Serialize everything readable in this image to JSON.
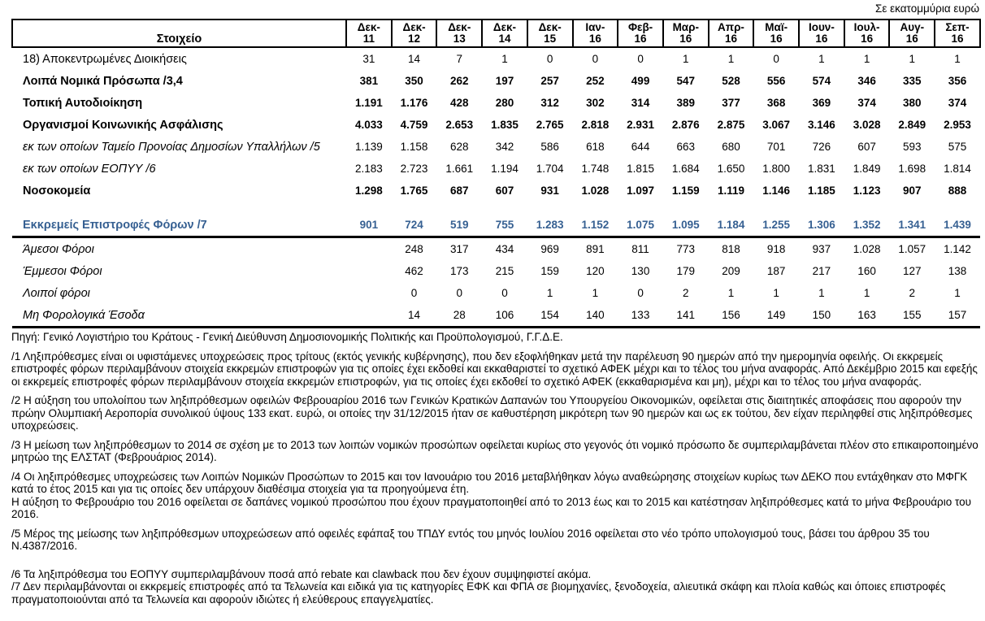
{
  "unit_note": "Σε εκατομμύρια ευρώ",
  "accent_color": "#366092",
  "table": {
    "header": {
      "label": "Στοιχείο",
      "months": [
        {
          "m": "Δεκ-",
          "y": "11"
        },
        {
          "m": "Δεκ-",
          "y": "12"
        },
        {
          "m": "Δεκ-",
          "y": "13"
        },
        {
          "m": "Δεκ-",
          "y": "14"
        },
        {
          "m": "Δεκ-",
          "y": "15"
        },
        {
          "m": "Ιαν-",
          "y": "16"
        },
        {
          "m": "Φεβ-",
          "y": "16"
        },
        {
          "m": "Μαρ-",
          "y": "16"
        },
        {
          "m": "Απρ-",
          "y": "16"
        },
        {
          "m": "Μαϊ-",
          "y": "16"
        },
        {
          "m": "Ιουν-",
          "y": "16"
        },
        {
          "m": "Ιουλ-",
          "y": "16"
        },
        {
          "m": "Αυγ-",
          "y": "16"
        },
        {
          "m": "Σεπ-",
          "y": "16"
        }
      ]
    },
    "rows": [
      {
        "label": "18) Αποκεντρωμένες Διοικήσεις",
        "style": "regular",
        "values": [
          "31",
          "14",
          "7",
          "1",
          "0",
          "0",
          "0",
          "1",
          "1",
          "0",
          "1",
          "1",
          "1",
          "1"
        ]
      },
      {
        "label": "Λοιπά Νομικά Πρόσωπα /3,4",
        "style": "bold",
        "values": [
          "381",
          "350",
          "262",
          "197",
          "257",
          "252",
          "499",
          "547",
          "528",
          "556",
          "574",
          "346",
          "335",
          "356"
        ]
      },
      {
        "label": "Τοπική Αυτοδιοίκηση",
        "style": "bold",
        "values": [
          "1.191",
          "1.176",
          "428",
          "280",
          "312",
          "302",
          "314",
          "389",
          "377",
          "368",
          "369",
          "374",
          "380",
          "374"
        ]
      },
      {
        "label": "Οργανισμοί Κοινωνικής Ασφάλισης",
        "style": "bold",
        "values": [
          "4.033",
          "4.759",
          "2.653",
          "1.835",
          "2.765",
          "2.818",
          "2.931",
          "2.876",
          "2.875",
          "3.067",
          "3.146",
          "3.028",
          "2.849",
          "2.953"
        ]
      },
      {
        "label": "εκ των οποίων Ταμείο Προνοίας Δημοσίων Υπαλλήλων /5",
        "style": "italic",
        "values": [
          "1.139",
          "1.158",
          "628",
          "342",
          "586",
          "618",
          "644",
          "663",
          "680",
          "701",
          "726",
          "607",
          "593",
          "575"
        ]
      },
      {
        "label": "εκ των οποίων ΕΟΠΥΥ /6",
        "style": "italic",
        "values": [
          "2.183",
          "2.723",
          "1.661",
          "1.194",
          "1.704",
          "1.748",
          "1.815",
          "1.684",
          "1.650",
          "1.800",
          "1.831",
          "1.849",
          "1.698",
          "1.814"
        ]
      },
      {
        "label": "Νοσοκομεία",
        "style": "bold",
        "values": [
          "1.298",
          "1.765",
          "687",
          "607",
          "931",
          "1.028",
          "1.097",
          "1.159",
          "1.119",
          "1.146",
          "1.185",
          "1.123",
          "907",
          "888"
        ]
      },
      {
        "label": "Εκκρεμείς Επιστροφές Φόρων /7",
        "style": "blue",
        "values": [
          "901",
          "724",
          "519",
          "755",
          "1.283",
          "1.152",
          "1.075",
          "1.095",
          "1.184",
          "1.255",
          "1.306",
          "1.352",
          "1.341",
          "1.439"
        ]
      },
      {
        "label": "Άμεσοι Φόροι",
        "style": "italic",
        "values": [
          "",
          "248",
          "317",
          "434",
          "969",
          "891",
          "811",
          "773",
          "818",
          "918",
          "937",
          "1.028",
          "1.057",
          "1.142"
        ]
      },
      {
        "label": "Έμμεσοι Φόροι",
        "style": "italic",
        "values": [
          "",
          "462",
          "173",
          "215",
          "159",
          "120",
          "130",
          "179",
          "209",
          "187",
          "217",
          "160",
          "127",
          "138"
        ]
      },
      {
        "label": "Λοιποί φόροι",
        "style": "italic",
        "values": [
          "",
          "0",
          "0",
          "0",
          "1",
          "1",
          "0",
          "2",
          "1",
          "1",
          "1",
          "1",
          "2",
          "1"
        ]
      },
      {
        "label": "Μη Φορολογικά Έσοδα",
        "style": "italic",
        "values": [
          "",
          "14",
          "28",
          "106",
          "154",
          "140",
          "133",
          "141",
          "156",
          "149",
          "150",
          "163",
          "155",
          "157"
        ]
      }
    ]
  },
  "footnotes": [
    {
      "lines": [
        "Πηγή: Γενικό Λογιστήριο του Κράτους - Γενική Διεύθυνση Δημοσιονομικής Πολιτικής και Προϋπολογισμού, Γ.Γ.Δ.Ε."
      ]
    },
    {
      "lines": [
        "/1 Ληξιπρόθεσμες είναι οι υφιστάμενες υποχρεώσεις προς τρίτους (εκτός γενικής κυβέρνησης), που δεν εξοφλήθηκαν μετά την παρέλευση 90 ημερών από την ημερομηνία οφειλής. Οι εκκρεμείς επιστροφές φόρων περιλαμβάνουν στοιχεία εκκρεμών επιστροφών  για τις οποίες έχει εκδοθεί και εκκαθαριστεί το σχετικό ΑΦΕΚ μέχρι και το τέλος του μήνα αναφοράς. Από Δεκέμβριο 2015 και εφεξής οι εκκρεμείς επιστροφές φόρων περιλαμβάνουν στοιχεία εκκρεμών επιστροφών, για τις οποίες έχει εκδοθεί το σχετικό ΑΦΕΚ (εκκαθαρισμένα και μη), μέχρι και το τέλος του μήνα αναφοράς."
      ]
    },
    {
      "lines": [
        "/2 Η αύξηση του υπολοίπου των ληξιπρόθεσμων οφειλών Φεβρουαρίου 2016 των Γενικών Κρατικών Δαπανών του Υπουργείου Οικονομικών, οφείλεται στις διαιτητικές αποφάσεις που αφορούν την πρώην Ολυμπιακή Αεροπορία συνολικού ύψους 133 εκατ. ευρώ, οι οποίες την 31/12/2015 ήταν σε καθυστέρηση μικρότερη των 90 ημερών και ως εκ τούτου, δεν είχαν περιληφθεί στις ληξιπρόθεσμες υποχρεώσεις."
      ]
    },
    {
      "lines": [
        "/3 Η μείωση των ληξιπρόθεσμων το  2014 σε σχέση με το  2013 των λοιπών νομικών προσώπων οφείλεται κυρίως στο γεγονός ότι νομικό πρόσωπο δε συμπεριλαμβάνεται πλέον στο επικαιροποιημένο μητρώο της ΕΛΣΤΑΤ  (Φεβρουάριος 2014)."
      ]
    },
    {
      "lines": [
        "/4 Οι ληξιπρόθεσμες υποχρεώσεις των Λοιπών Νομικών Προσώπων το 2015 και τον Ιανουάριο του 2016 μεταβλήθηκαν λόγω αναθεώρησης στοιχείων κυρίως των ΔΕΚΟ που εντάχθηκαν στο ΜΦΓΚ κατά το έτος 2015 και για τις οποίες δεν υπάρχουν διαθέσιμα στοιχεία για τα προηγούμενα έτη.",
        "Η αύξηση το Φεβρουάριο του 2016 οφείλεται σε δαπάνες νομικού προσώπου που έχουν πραγματοποιηθεί από το 2013 έως και το 2015 και κατέστησαν ληξιπρόθεσμες κατά το μήνα Φεβρουάριο του 2016."
      ]
    },
    {
      "lines": [
        "/5 Μέρος της μείωσης των ληξιπρόθεσμων υποχρεώσεων από οφειλές εφάπαξ του ΤΠΔΥ εντός του μηνός Ιουλίου 2016 οφείλεται στο νέο τρόπο υπολογισμού τους, βάσει του άρθρου 35 του Ν.4387/2016."
      ]
    },
    {
      "lines": [
        "/6 Τα ληξιπρόθεσμα  του ΕΟΠΥΥ  συμπεριλαμβάνουν ποσά  από rebate και clawback  που δεν έχουν συμψηφιστεί ακόμα."
      ]
    },
    {
      "lines": [
        "/7 Δεν περιλαμβάνονται οι εκκρεμείς επιστροφές από τα Τελωνεία και ειδικά για τις κατηγορίες ΕΦΚ και ΦΠΑ σε βιομηχανίες, ξενοδοχεία, αλιευτικά σκάφη και πλοία καθώς και όποιες επιστροφές πραγματοποιούνται από τα Τελωνεία και αφορούν ιδιώτες ή ελεύθερους επαγγελματίες."
      ]
    }
  ]
}
